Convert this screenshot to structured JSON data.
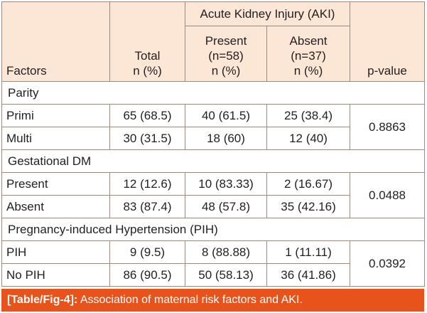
{
  "header": {
    "factors": "Factors",
    "total_line1": "Total",
    "total_line2": "n (%)",
    "aki_group": "Acute Kidney Injury (AKI)",
    "present_line1": "Present",
    "present_line2": "(n=58)",
    "present_line3": "n (%)",
    "absent_line1": "Absent",
    "absent_line2": "(n=37)",
    "absent_line3": "n (%)",
    "pvalue": "p-value"
  },
  "groups": [
    {
      "title": "Parity",
      "pvalue": "0.8863",
      "rows": [
        {
          "factor": "Primi",
          "total": "65 (68.5)",
          "present": "40 (61.5)",
          "absent": "25 (38.4)"
        },
        {
          "factor": "Multi",
          "total": "30 (31.5)",
          "present": "18 (60)",
          "absent": "12 (40)"
        }
      ]
    },
    {
      "title": "Gestational DM",
      "pvalue": "0.0488",
      "rows": [
        {
          "factor": "Present",
          "total": "12 (12.6)",
          "present": "10 (83.33)",
          "absent": "2 (16.67)"
        },
        {
          "factor": "Absent",
          "total": "83 (87.4)",
          "present": "48 (57.8)",
          "absent": "35 (42.16)"
        }
      ]
    },
    {
      "title": "Pregnancy-induced Hypertension (PIH)",
      "pvalue": "0.0392",
      "rows": [
        {
          "factor": "PIH",
          "total": "9 (9.5)",
          "present": "8 (88.88)",
          "absent": "1 (11.11)"
        },
        {
          "factor": "No PIH",
          "total": "86 (90.5)",
          "present": "50 (58.13)",
          "absent": "36 (41.86)"
        }
      ]
    }
  ],
  "caption": {
    "label": "[Table/Fig-4]:",
    "text": "Association of maternal risk factors and AKI."
  }
}
